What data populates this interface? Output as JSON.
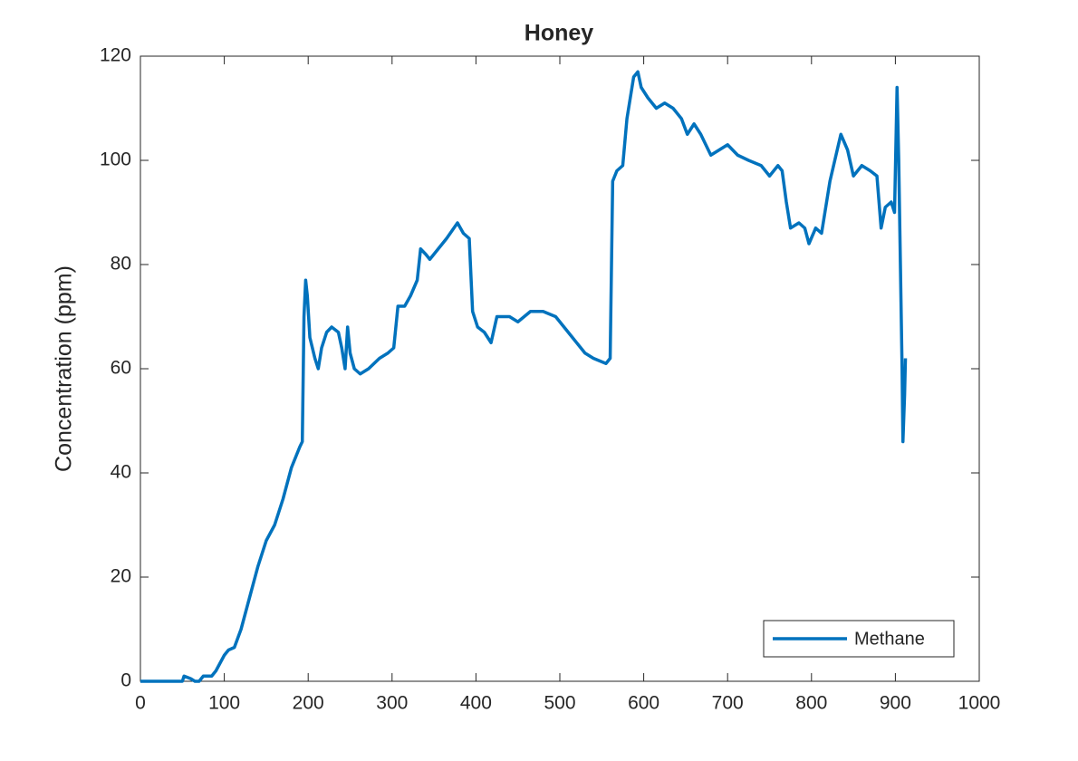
{
  "chart_data": {
    "type": "line",
    "title": "Honey",
    "ylabel": "Concentration (ppm)",
    "xlim": [
      0,
      1000
    ],
    "xticks": [
      0,
      100,
      200,
      300,
      400,
      500,
      600,
      700,
      800,
      900,
      1000
    ],
    "ylim": [
      0,
      120
    ],
    "yticks": [
      0,
      20,
      40,
      60,
      80,
      100,
      120
    ],
    "legend": "southeast",
    "x": [
      0,
      50,
      52,
      60,
      65,
      70,
      75,
      85,
      90,
      100,
      105,
      112,
      120,
      130,
      140,
      150,
      160,
      170,
      180,
      190,
      193,
      195,
      197,
      199,
      202,
      208,
      212,
      216,
      222,
      228,
      236,
      240,
      244,
      247,
      250,
      255,
      262,
      272,
      285,
      295,
      302,
      307,
      315,
      322,
      330,
      334,
      340,
      345,
      355,
      365,
      378,
      385,
      392,
      396,
      402,
      410,
      418,
      425,
      440,
      450,
      465,
      480,
      495,
      505,
      515,
      530,
      540,
      555,
      560,
      563,
      568,
      575,
      580,
      588,
      593,
      597,
      605,
      615,
      625,
      635,
      645,
      652,
      660,
      668,
      680,
      690,
      700,
      712,
      725,
      740,
      750,
      760,
      765,
      770,
      775,
      785,
      792,
      797,
      805,
      812,
      822,
      835,
      843,
      850,
      860,
      870,
      878,
      883,
      888,
      895,
      899,
      902,
      904,
      906,
      908,
      909,
      911,
      912
    ],
    "series": [
      {
        "name": "Methane",
        "color": "#0072bd",
        "values": [
          0,
          0,
          1,
          0.5,
          0,
          0,
          1,
          1,
          2,
          5,
          6,
          6.5,
          10,
          16,
          22,
          27,
          30,
          35,
          41,
          45,
          46,
          70,
          77,
          74,
          66,
          62,
          60,
          64,
          67,
          68,
          67,
          64,
          60,
          68,
          63,
          60,
          59,
          60,
          62,
          63,
          64,
          72,
          72,
          74,
          77,
          83,
          82,
          81,
          83,
          85,
          88,
          86,
          85,
          71,
          68,
          67,
          65,
          70,
          70,
          69,
          71,
          71,
          70,
          68,
          66,
          63,
          62,
          61,
          62,
          96,
          98,
          99,
          108,
          116,
          117,
          114,
          112,
          110,
          111,
          110,
          108,
          105,
          107,
          105,
          101,
          102,
          103,
          101,
          100,
          99,
          97,
          99,
          98,
          92,
          87,
          88,
          87,
          84,
          87,
          86,
          96,
          105,
          102,
          97,
          99,
          98,
          97,
          87,
          91,
          92,
          90,
          114,
          100,
          80,
          60,
          46,
          55,
          62
        ]
      }
    ]
  }
}
